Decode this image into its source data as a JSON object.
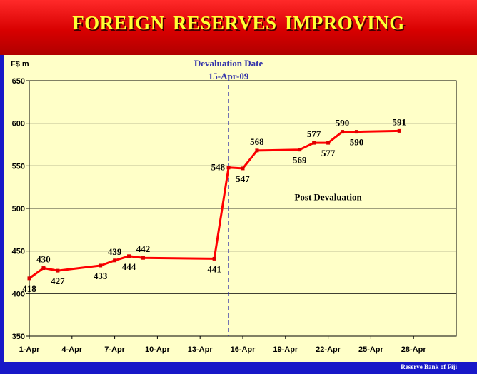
{
  "title": "FOREIGN RESERVES  IMPROVING",
  "footer": "Reserve  Bank of Fiji",
  "colors": {
    "banner": "#dd0000",
    "title_text": "#ffff33",
    "background": "#ffffc8",
    "line": "#ff0000",
    "annotation": "#3333aa",
    "footer_bar": "#1818c8"
  },
  "chart_data": {
    "type": "line",
    "title": "FOREIGN RESERVES  IMPROVING",
    "ylabel": "F$ m",
    "xlabel": "",
    "ylim": [
      350,
      650
    ],
    "yticks": [
      350,
      400,
      450,
      500,
      550,
      600,
      650
    ],
    "xlim_days": [
      1,
      31
    ],
    "xticks": [
      {
        "day": 1,
        "label": "1-Apr"
      },
      {
        "day": 4,
        "label": "4-Apr"
      },
      {
        "day": 7,
        "label": "7-Apr"
      },
      {
        "day": 10,
        "label": "10-Apr"
      },
      {
        "day": 13,
        "label": "13-Apr"
      },
      {
        "day": 16,
        "label": "16-Apr"
      },
      {
        "day": 19,
        "label": "19-Apr"
      },
      {
        "day": 22,
        "label": "22-Apr"
      },
      {
        "day": 25,
        "label": "25-Apr"
      },
      {
        "day": 28,
        "label": "28-Apr"
      }
    ],
    "grid": true,
    "series": [
      {
        "points": [
          {
            "x": "1-Apr",
            "y": 418,
            "label": "418",
            "label_pos": "below"
          },
          {
            "x": "2-Apr",
            "y": 430,
            "label": "430",
            "label_pos": "above"
          },
          {
            "x": "3-Apr",
            "y": 427,
            "label": "427",
            "label_pos": "below"
          },
          {
            "x": "6-Apr",
            "y": 433,
            "label": "433",
            "label_pos": "below"
          },
          {
            "x": "7-Apr",
            "y": 439,
            "label": "439",
            "label_pos": "above"
          },
          {
            "x": "8-Apr",
            "y": 444,
            "label": "444",
            "label_pos": "below"
          },
          {
            "x": "9-Apr",
            "y": 442,
            "label": "442",
            "label_pos": "above"
          },
          {
            "x": "14-Apr",
            "y": 441,
            "label": "441",
            "label_pos": "below"
          },
          {
            "x": "15-Apr",
            "y": 548,
            "label": "548",
            "label_pos": "left"
          },
          {
            "x": "16-Apr",
            "y": 547,
            "label": "547",
            "label_pos": "below"
          },
          {
            "x": "17-Apr",
            "y": 568,
            "label": "568",
            "label_pos": "above"
          },
          {
            "x": "20-Apr",
            "y": 569,
            "label": "569",
            "label_pos": "below"
          },
          {
            "x": "21-Apr",
            "y": 577,
            "label": "577",
            "label_pos": "above"
          },
          {
            "x": "22-Apr",
            "y": 577,
            "label": "577",
            "label_pos": "below"
          },
          {
            "x": "23-Apr",
            "y": 590,
            "label": "590",
            "label_pos": "above"
          },
          {
            "x": "24-Apr",
            "y": 590,
            "label": "590",
            "label_pos": "below"
          },
          {
            "x": "27-Apr",
            "y": 591,
            "label": "591",
            "label_pos": "above"
          }
        ]
      }
    ],
    "annotations": {
      "devaluation_line_date": "15-Apr-09",
      "devaluation_label": "Devaluation Date",
      "devaluation_date_text": "15-Apr-09",
      "post_label": "Post Devaluation",
      "post_label_at": {
        "x": "22-Apr",
        "y": 514
      }
    }
  }
}
